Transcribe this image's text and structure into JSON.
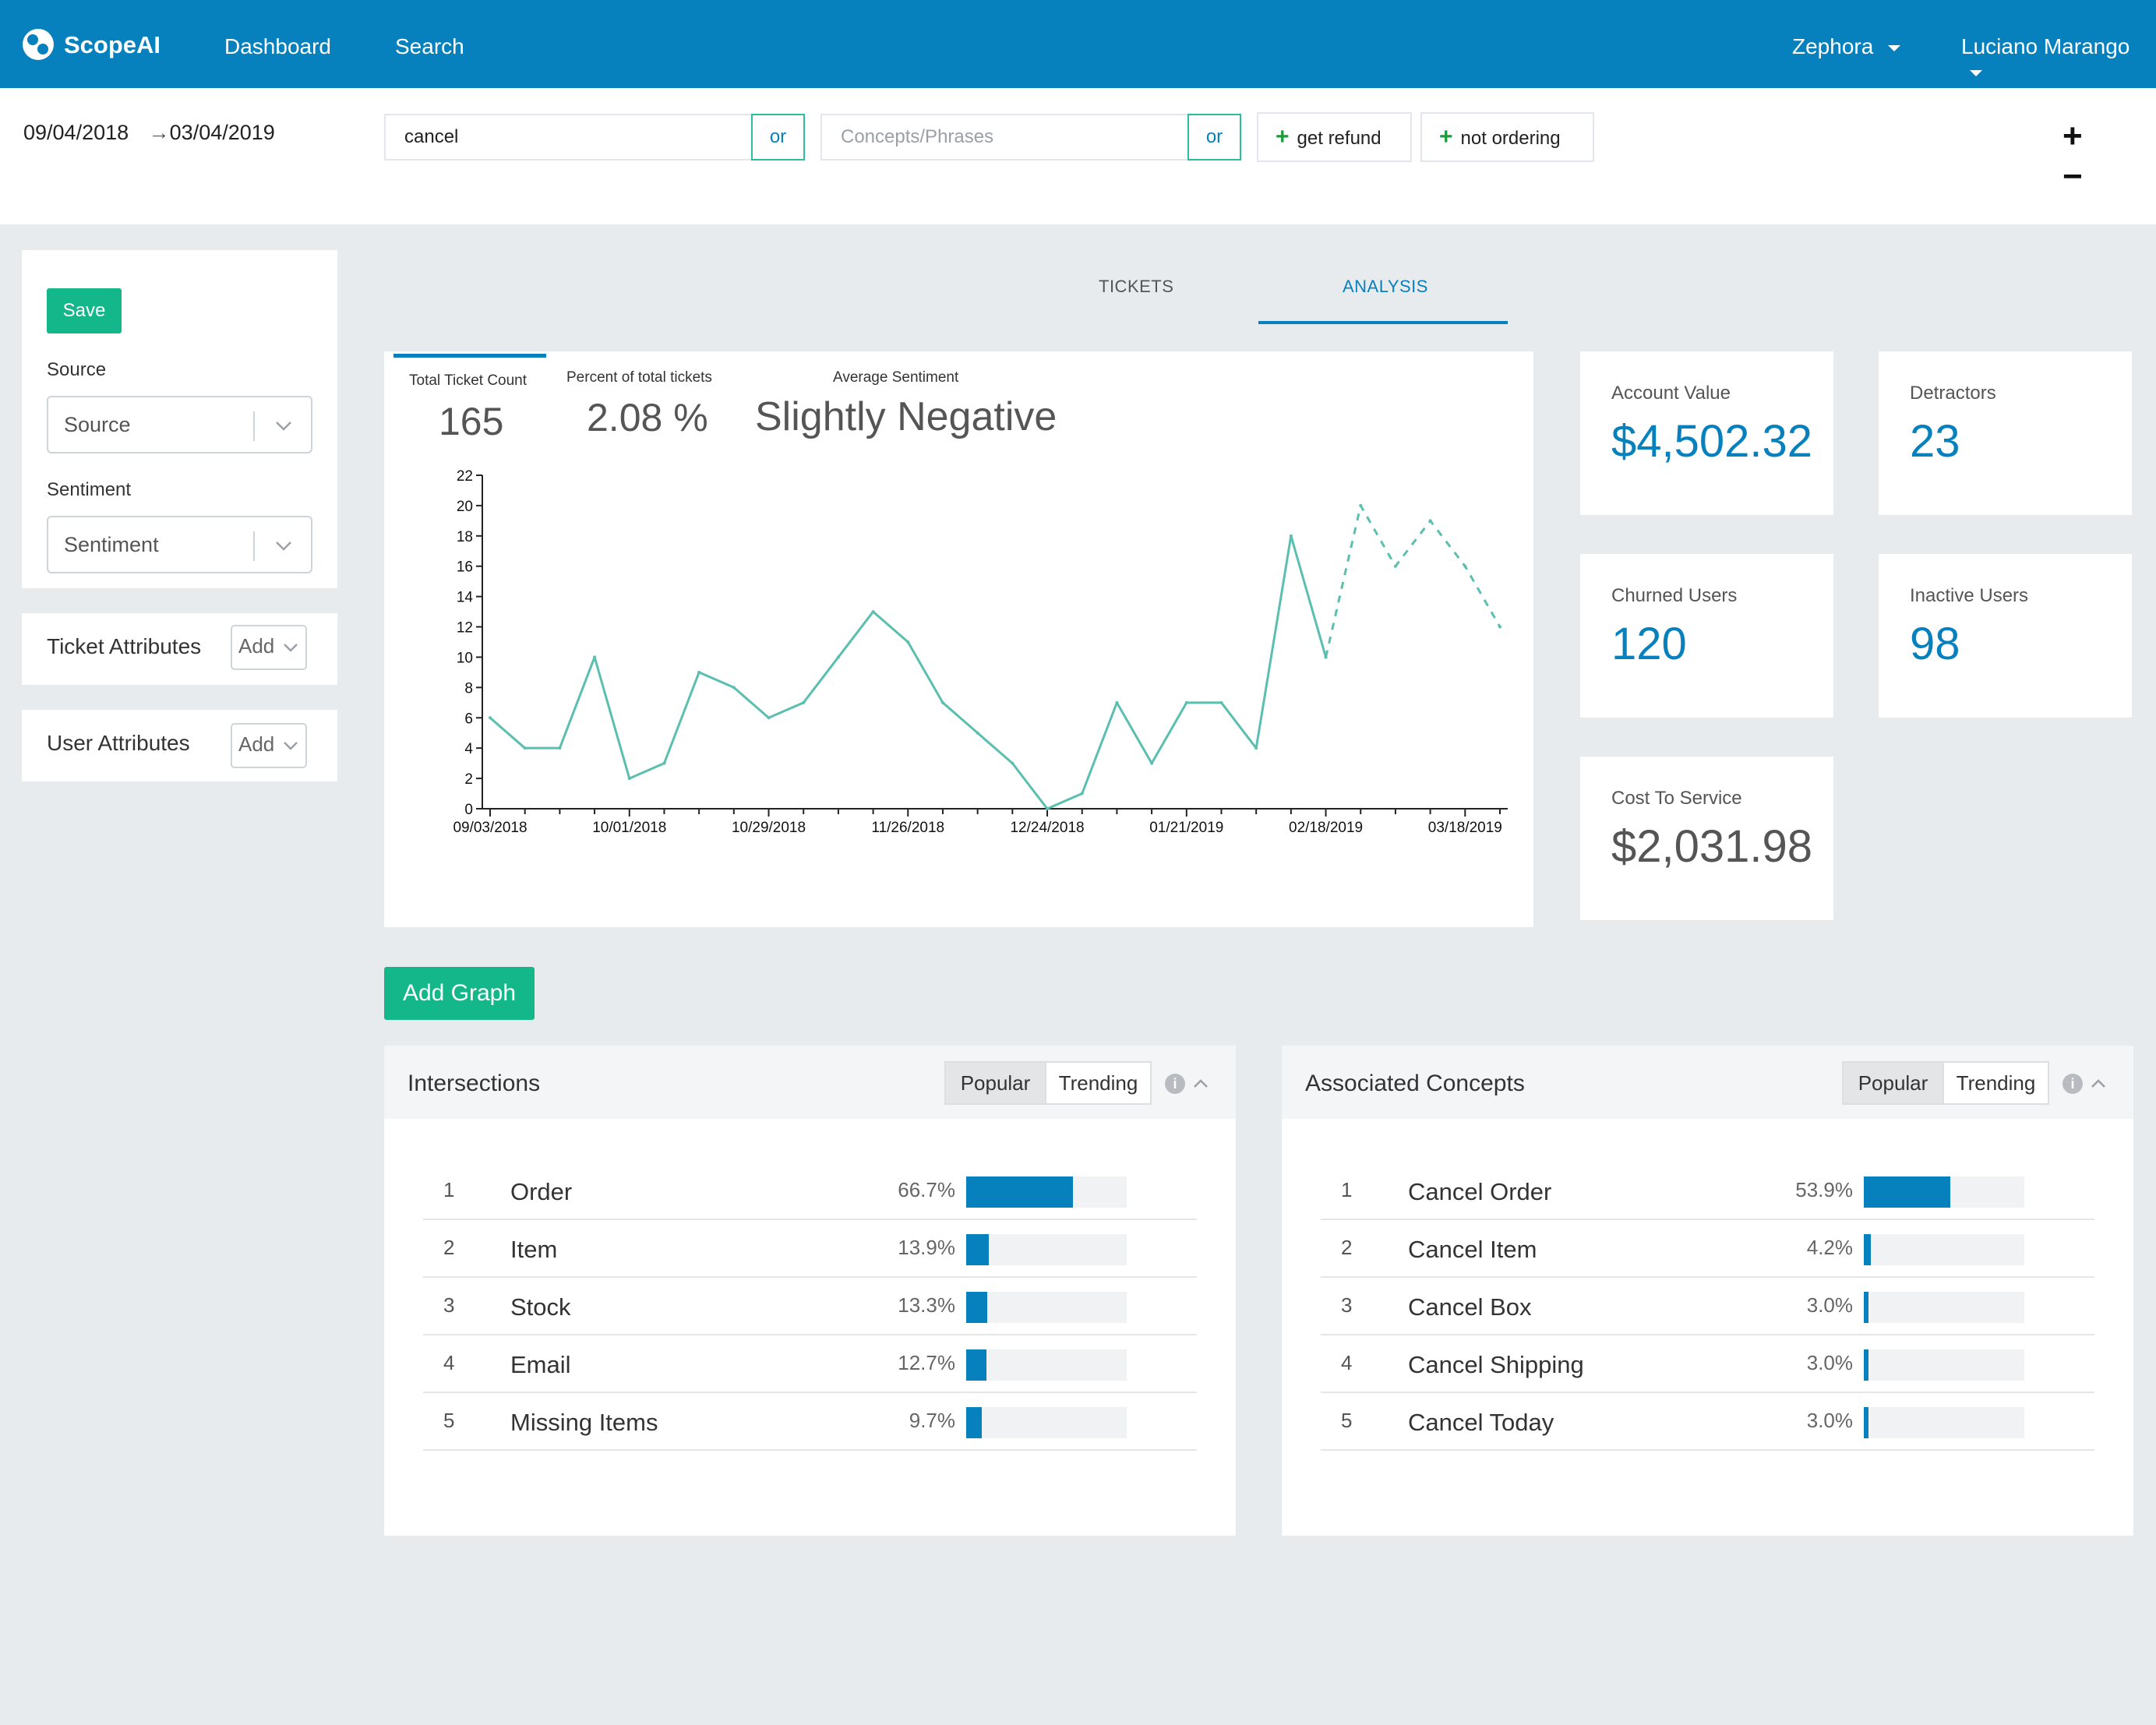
{
  "app": {
    "logo_text": "ScopeAI",
    "logo_accent": "AI"
  },
  "nav": {
    "dashboard": "Dashboard",
    "search": "Search",
    "org": "Zephora",
    "user": "Luciano Marango"
  },
  "filters": {
    "date_start": "09/04/2018",
    "date_arrow": "→",
    "date_end": "03/04/2019",
    "query_value": "cancel",
    "or_label_1": "or",
    "concepts_placeholder": "Concepts/Phrases",
    "or_label_2": "or",
    "tag_1": "get refund",
    "tag_2": "not ordering",
    "zoom_in": "+",
    "zoom_out": "−"
  },
  "sidebar": {
    "save_label": "Save",
    "source_label": "Source",
    "source_value": "Source",
    "sentiment_label": "Sentiment",
    "sentiment_value": "Sentiment",
    "ticket_attributes_label": "Ticket Attributes",
    "user_attributes_label": "User Attributes",
    "add_label": "Add"
  },
  "tabs": {
    "tickets": "TICKETS",
    "analysis": "ANALYSIS",
    "active": "analysis"
  },
  "summary": {
    "total_ticket_count_label": "Total Ticket Count",
    "total_ticket_count": "165",
    "percent_label": "Percent of total tickets",
    "percent_value": "2.08 %",
    "sentiment_label": "Average Sentiment",
    "sentiment_value": "Slightly Negative"
  },
  "chart_data": {
    "type": "line",
    "title": "",
    "xlabel": "",
    "ylabel": "",
    "ylim": [
      0,
      22
    ],
    "y_ticks": [
      0,
      2,
      4,
      6,
      8,
      10,
      12,
      14,
      16,
      18,
      20,
      22
    ],
    "x_tick_labels": [
      "09/03/2018",
      "10/01/2018",
      "10/29/2018",
      "11/26/2018",
      "12/24/2018",
      "01/21/2019",
      "02/18/2019",
      "03/18/2019"
    ],
    "series": [
      {
        "name": "tickets",
        "style": "solid",
        "color": "#5bbfb0",
        "values": [
          6,
          4,
          4,
          10,
          2,
          3,
          9,
          8,
          6,
          7,
          10,
          13,
          11,
          7,
          5,
          3,
          0,
          1,
          7,
          3,
          7,
          7,
          4,
          18,
          10
        ]
      },
      {
        "name": "projected",
        "style": "dashed",
        "color": "#5bbfb0",
        "start_index": 24,
        "values": [
          10,
          20,
          16,
          19,
          16,
          12
        ]
      }
    ]
  },
  "cards": [
    {
      "label": "Account Value",
      "value": "$4,502.32",
      "color": "#0681bd"
    },
    {
      "label": "Detractors",
      "value": "23",
      "color": "#0681bd"
    },
    {
      "label": "Churned Users",
      "value": "120",
      "color": "#0681bd"
    },
    {
      "label": "Inactive Users",
      "value": "98",
      "color": "#0681bd"
    },
    {
      "label": "Cost To Service",
      "value": "$2,031.98",
      "color": "#555555"
    }
  ],
  "add_graph_label": "Add Graph",
  "intersections": {
    "title": "Intersections",
    "popular": "Popular",
    "trending": "Trending",
    "info": "i",
    "rows": [
      {
        "rank": "1",
        "name": "Order",
        "pct_text": "66.7%",
        "pct": 0.667
      },
      {
        "rank": "2",
        "name": "Item",
        "pct_text": "13.9%",
        "pct": 0.139
      },
      {
        "rank": "3",
        "name": "Stock",
        "pct_text": "13.3%",
        "pct": 0.133
      },
      {
        "rank": "4",
        "name": "Email",
        "pct_text": "12.7%",
        "pct": 0.127
      },
      {
        "rank": "5",
        "name": "Missing Items",
        "pct_text": "9.7%",
        "pct": 0.097
      }
    ]
  },
  "concepts": {
    "title": "Associated Concepts",
    "popular": "Popular",
    "trending": "Trending",
    "info": "i",
    "rows": [
      {
        "rank": "1",
        "name": "Cancel Order",
        "pct_text": "53.9%",
        "pct": 0.539
      },
      {
        "rank": "2",
        "name": "Cancel Item",
        "pct_text": "4.2%",
        "pct": 0.042
      },
      {
        "rank": "3",
        "name": "Cancel Box",
        "pct_text": "3.0%",
        "pct": 0.03
      },
      {
        "rank": "4",
        "name": "Cancel Shipping",
        "pct_text": "3.0%",
        "pct": 0.03
      },
      {
        "rank": "5",
        "name": "Cancel Today",
        "pct_text": "3.0%",
        "pct": 0.03
      }
    ]
  },
  "colors": {
    "brand": "#0681bd",
    "accent_green": "#13b789",
    "line": "#5bbfb0",
    "bg": "#e8ebee"
  }
}
